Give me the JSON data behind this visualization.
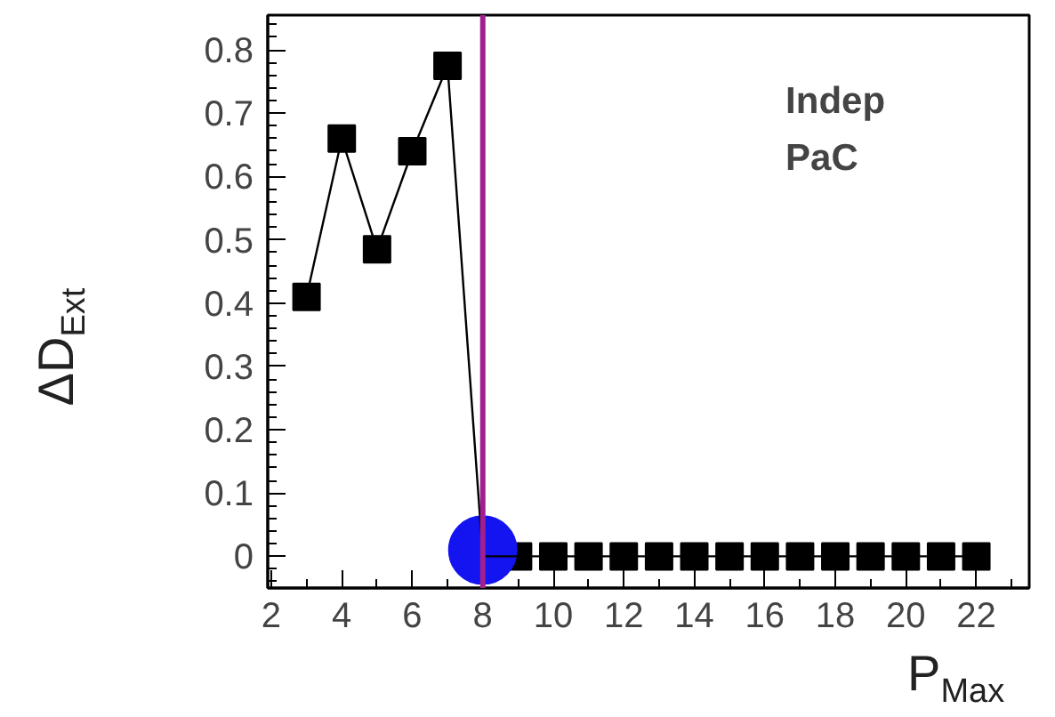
{
  "chart_data": {
    "type": "line",
    "xlabel": "P$_{Max}$",
    "ylabel": "ΔD$_{Ext}$",
    "xlim": [
      1.9,
      23.5
    ],
    "ylim": [
      -0.05,
      0.855
    ],
    "xticks": [
      2,
      4,
      6,
      8,
      10,
      12,
      14,
      16,
      18,
      20,
      22
    ],
    "yticks": [
      0,
      0.1,
      0.2,
      0.3,
      0.4,
      0.5,
      0.6,
      0.7,
      0.8
    ],
    "grid": false,
    "line_style": "solid",
    "series": [
      {
        "marker": "square",
        "color": "#000000",
        "x": [
          3,
          4,
          5,
          6,
          7,
          8,
          9,
          10,
          11,
          12,
          13,
          14,
          15,
          16,
          17,
          18,
          19,
          20,
          21,
          22
        ],
        "values": [
          0.41,
          0.66,
          0.485,
          0.64,
          0.775,
          0,
          0,
          0,
          0,
          0,
          0,
          0,
          0,
          0,
          0,
          0,
          0,
          0,
          0,
          0
        ]
      },
      {
        "type": "scatter",
        "marker": "circle",
        "color": "#1414f0",
        "x": [
          8
        ],
        "values": [
          0.01
        ]
      }
    ],
    "ref_lines": [
      {
        "axis": "x",
        "value": 8,
        "color": "#a0208f"
      }
    ],
    "annotations": [
      "Indep",
      "PaC"
    ]
  }
}
